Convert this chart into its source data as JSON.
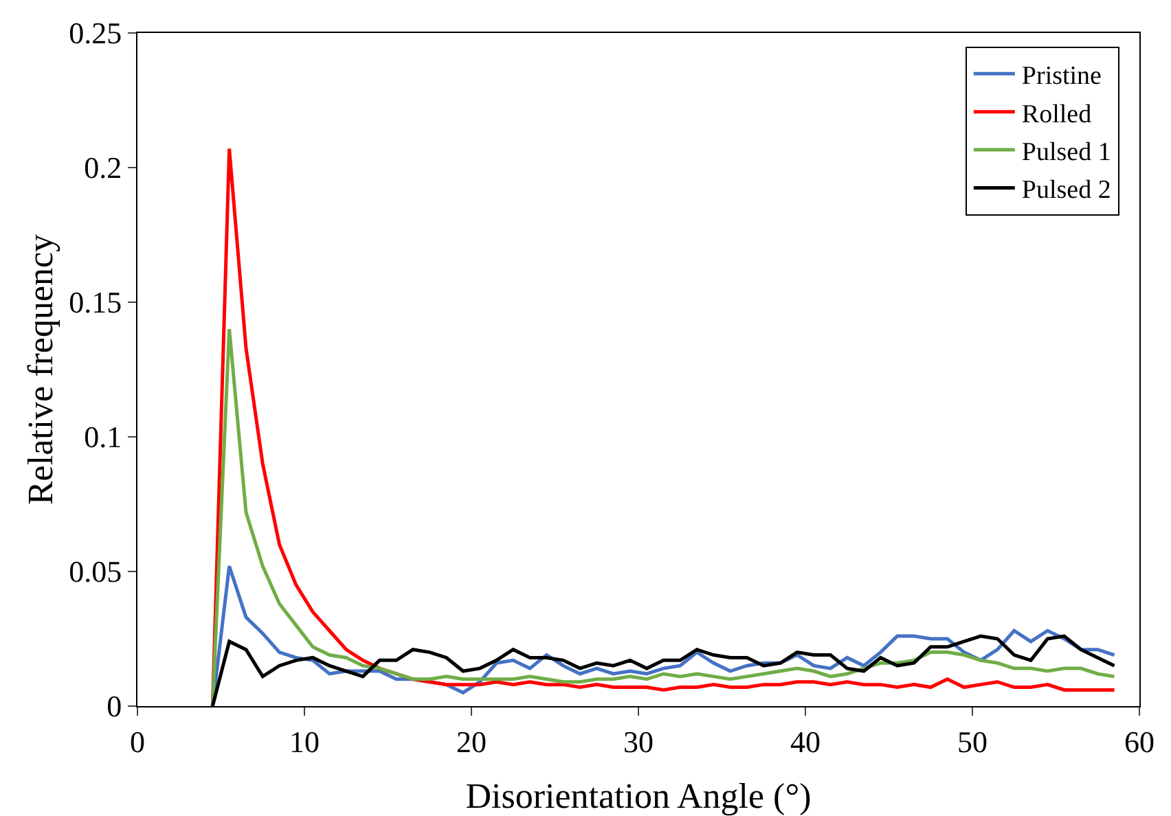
{
  "chart_data": {
    "type": "line",
    "xlabel": "Disorientation Angle (°)",
    "ylabel": "Relative frequency",
    "x": [
      4.5,
      5.5,
      6.5,
      7.5,
      8.5,
      9.5,
      10.5,
      11.5,
      12.5,
      13.5,
      14.5,
      15.5,
      16.5,
      17.5,
      18.5,
      19.5,
      20.5,
      21.5,
      22.5,
      23.5,
      24.5,
      25.5,
      26.5,
      27.5,
      28.5,
      29.5,
      30.5,
      31.5,
      32.5,
      33.5,
      34.5,
      35.5,
      36.5,
      37.5,
      38.5,
      39.5,
      40.5,
      41.5,
      42.5,
      43.5,
      44.5,
      45.5,
      46.5,
      47.5,
      48.5,
      49.5,
      50.5,
      51.5,
      52.5,
      53.5,
      54.5,
      55.5,
      56.5,
      57.5,
      58.5
    ],
    "series": [
      {
        "name": "Pristine",
        "color": "#4472c4",
        "values": [
          0,
          0.052,
          0.033,
          0.027,
          0.02,
          0.018,
          0.017,
          0.012,
          0.013,
          0.013,
          0.013,
          0.01,
          0.01,
          0.009,
          0.008,
          0.005,
          0.009,
          0.016,
          0.017,
          0.014,
          0.019,
          0.015,
          0.012,
          0.014,
          0.012,
          0.013,
          0.012,
          0.014,
          0.015,
          0.02,
          0.016,
          0.013,
          0.015,
          0.016,
          0.016,
          0.019,
          0.015,
          0.014,
          0.018,
          0.015,
          0.02,
          0.026,
          0.026,
          0.025,
          0.025,
          0.02,
          0.017,
          0.021,
          0.028,
          0.024,
          0.028,
          0.025,
          0.021,
          0.021,
          0.019
        ]
      },
      {
        "name": "Rolled",
        "color": "#ff0000",
        "values": [
          0,
          0.207,
          0.133,
          0.09,
          0.06,
          0.045,
          0.035,
          0.028,
          0.021,
          0.017,
          0.014,
          0.012,
          0.01,
          0.009,
          0.008,
          0.008,
          0.008,
          0.009,
          0.008,
          0.009,
          0.008,
          0.008,
          0.007,
          0.008,
          0.007,
          0.007,
          0.007,
          0.006,
          0.007,
          0.007,
          0.008,
          0.007,
          0.007,
          0.008,
          0.008,
          0.009,
          0.009,
          0.008,
          0.009,
          0.008,
          0.008,
          0.007,
          0.008,
          0.007,
          0.01,
          0.007,
          0.008,
          0.009,
          0.007,
          0.007,
          0.008,
          0.006,
          0.006,
          0.006,
          0.006
        ]
      },
      {
        "name": "Pulsed 1",
        "color": "#70ad47",
        "values": [
          0,
          0.14,
          0.072,
          0.052,
          0.038,
          0.03,
          0.022,
          0.019,
          0.018,
          0.015,
          0.014,
          0.012,
          0.01,
          0.01,
          0.011,
          0.01,
          0.01,
          0.01,
          0.01,
          0.011,
          0.01,
          0.009,
          0.009,
          0.01,
          0.01,
          0.011,
          0.01,
          0.012,
          0.011,
          0.012,
          0.011,
          0.01,
          0.011,
          0.012,
          0.013,
          0.014,
          0.013,
          0.011,
          0.012,
          0.014,
          0.016,
          0.016,
          0.017,
          0.02,
          0.02,
          0.019,
          0.017,
          0.016,
          0.014,
          0.014,
          0.013,
          0.014,
          0.014,
          0.012,
          0.011
        ]
      },
      {
        "name": "Pulsed 2",
        "color": "#000000",
        "values": [
          0,
          0.024,
          0.021,
          0.011,
          0.015,
          0.017,
          0.018,
          0.015,
          0.013,
          0.011,
          0.017,
          0.017,
          0.021,
          0.02,
          0.018,
          0.013,
          0.014,
          0.017,
          0.021,
          0.018,
          0.018,
          0.017,
          0.014,
          0.016,
          0.015,
          0.017,
          0.014,
          0.017,
          0.017,
          0.021,
          0.019,
          0.018,
          0.018,
          0.015,
          0.016,
          0.02,
          0.019,
          0.019,
          0.014,
          0.013,
          0.018,
          0.015,
          0.016,
          0.022,
          0.022,
          0.024,
          0.026,
          0.025,
          0.019,
          0.017,
          0.025,
          0.026,
          0.021,
          0.018,
          0.015
        ]
      }
    ],
    "xlim": [
      0,
      60
    ],
    "xticks": [
      0,
      10,
      20,
      30,
      40,
      50,
      60
    ],
    "ylim": [
      0,
      0.25
    ],
    "yticks": [
      0,
      0.05,
      0.1,
      0.15,
      0.2,
      0.25
    ],
    "grid": false,
    "legend": "top right"
  }
}
